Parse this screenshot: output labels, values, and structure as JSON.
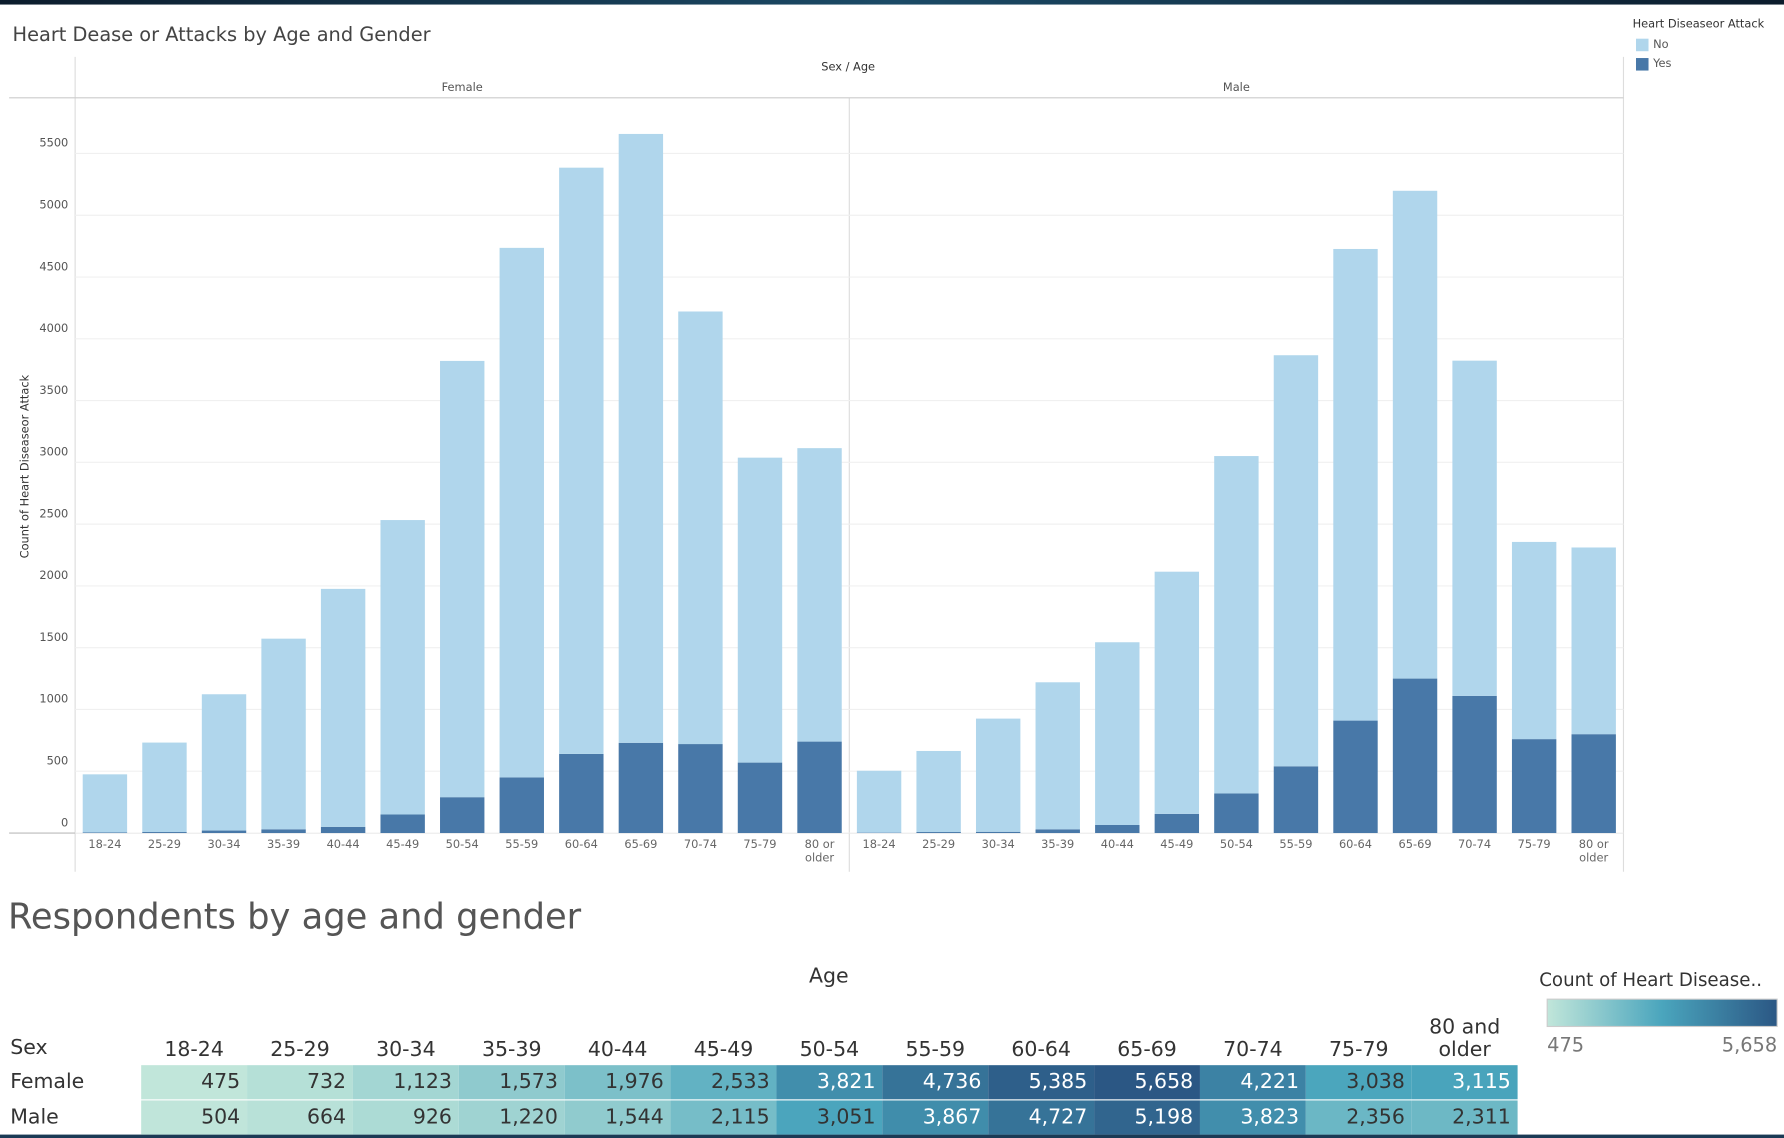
{
  "chart_data": [
    {
      "type": "bar",
      "title": "Heart Dease or Attacks by Age and Gender",
      "header": "Sex / Age",
      "y_label": "Count of Heart Diseaseor Attack",
      "legend_title": "Heart Diseaseor Attack",
      "categories": [
        "18-24",
        "25-29",
        "30-34",
        "35-39",
        "40-44",
        "45-49",
        "50-54",
        "55-59",
        "60-64",
        "65-69",
        "70-74",
        "75-79",
        "80 or older"
      ],
      "panels": [
        {
          "name": "Female",
          "series": [
            {
              "name": "No",
              "color": "#b0d6ec",
              "values": [
                470,
                724,
                1103,
                1543,
                1926,
                2383,
                3531,
                4286,
                4745,
                4928,
                3501,
                2468,
                2375
              ]
            },
            {
              "name": "Yes",
              "color": "#4878a8",
              "values": [
                5,
                8,
                20,
                30,
                50,
                150,
                290,
                450,
                640,
                730,
                720,
                570,
                740
              ]
            }
          ]
        },
        {
          "name": "Male",
          "series": [
            {
              "name": "No",
              "color": "#b0d6ec",
              "values": [
                501,
                656,
                916,
                1190,
                1479,
                1960,
                2731,
                3327,
                3817,
                3948,
                2713,
                1596,
                1511
              ]
            },
            {
              "name": "Yes",
              "color": "#4878a8",
              "values": [
                3,
                8,
                10,
                30,
                65,
                155,
                320,
                540,
                910,
                1250,
                1110,
                760,
                800
              ]
            }
          ]
        }
      ],
      "ylim": [
        0,
        5950
      ],
      "yticks": [
        0,
        500,
        1000,
        1500,
        2000,
        2500,
        3000,
        3500,
        4000,
        4500,
        5000,
        5500
      ],
      "grid": true
    },
    {
      "type": "heatmap",
      "title": "Respondents by age and gender",
      "column_header": "Age",
      "row_header": "Sex",
      "columns": [
        "18-24",
        "25-29",
        "30-34",
        "35-39",
        "40-44",
        "45-49",
        "50-54",
        "55-59",
        "60-64",
        "65-69",
        "70-74",
        "75-79",
        "80 and older"
      ],
      "rows": [
        {
          "name": "Female",
          "values": [
            475,
            732,
            1123,
            1573,
            1976,
            2533,
            3821,
            4736,
            5385,
            5658,
            4221,
            3038,
            3115
          ],
          "value_labels": [
            "475",
            "732",
            "1,123",
            "1,573",
            "1,976",
            "2,533",
            "3,821",
            "4,736",
            "5,385",
            "5,658",
            "4,221",
            "3,038",
            "3,115"
          ]
        },
        {
          "name": "Male",
          "values": [
            504,
            664,
            926,
            1220,
            1544,
            2115,
            3051,
            3867,
            4727,
            5198,
            3823,
            2356,
            2311
          ],
          "value_labels": [
            "504",
            "664",
            "926",
            "1,220",
            "1,544",
            "2,115",
            "3,051",
            "3,867",
            "4,727",
            "5,198",
            "3,823",
            "2,356",
            "2,311"
          ]
        }
      ],
      "legend_title": "Count of Heart Disease..",
      "colors": [
        "#c1e6da",
        "#4aa5bd",
        "#2b5784"
      ],
      "color_range": [
        475,
        {
          "value": 5658,
          "label": "5,658"
        }
      ]
    }
  ]
}
